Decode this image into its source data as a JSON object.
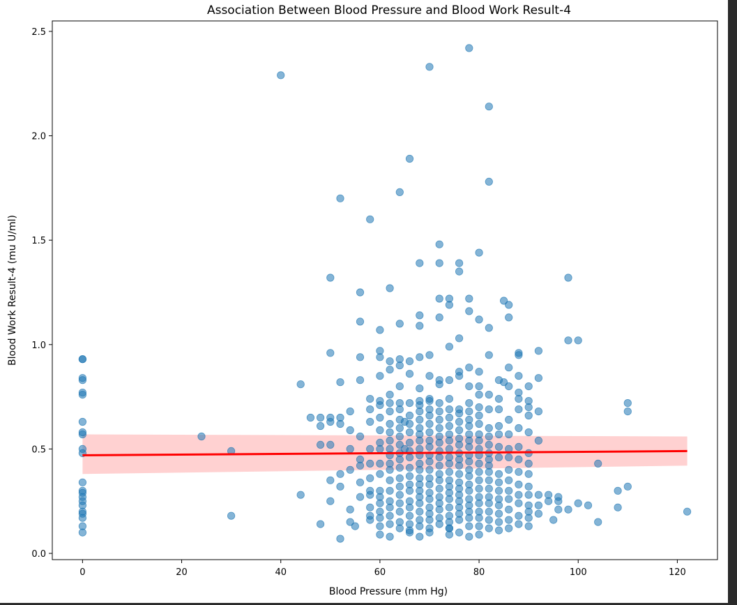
{
  "chart_data": {
    "type": "scatter",
    "title": "Association Between Blood Pressure and Blood Work Result-4",
    "xlabel": "Blood Pressure (mm Hg)",
    "ylabel": "Blood Work Result-4 (mu U/ml)",
    "xlim": [
      -6.1,
      128.1
    ],
    "ylim": [
      -0.03,
      2.55
    ],
    "xticks": [
      0,
      20,
      40,
      60,
      80,
      100,
      120
    ],
    "yticks": [
      0.0,
      0.5,
      1.0,
      1.5,
      2.0,
      2.5
    ],
    "xtick_labels": [
      "0",
      "20",
      "40",
      "60",
      "80",
      "100",
      "120"
    ],
    "ytick_labels": [
      "0.0",
      "0.5",
      "1.0",
      "1.5",
      "2.0",
      "2.5"
    ],
    "grid": false,
    "point_color": "#1f77b4",
    "line_color": "#ff0000",
    "band_color": "#ffb3b3",
    "series": [
      {
        "kind": "points",
        "x": [
          0,
          0,
          0,
          0,
          0,
          0,
          0,
          0,
          0,
          0,
          0,
          0,
          0,
          0,
          0,
          0,
          0,
          0,
          0,
          0,
          0,
          0,
          24,
          30,
          30,
          40,
          44,
          44,
          46,
          48,
          48,
          48,
          48,
          50,
          50,
          50,
          50,
          50,
          50,
          50,
          52,
          52,
          52,
          52,
          52,
          52,
          52,
          54,
          54,
          54,
          54,
          54,
          54,
          55,
          56,
          56,
          56,
          56,
          56,
          56,
          56,
          56,
          56,
          58,
          58,
          58,
          58,
          58,
          58,
          58,
          58,
          58,
          58,
          58,
          58,
          60,
          60,
          60,
          60,
          60,
          60,
          60,
          60,
          60,
          60,
          60,
          60,
          60,
          60,
          60,
          60,
          60,
          60,
          60,
          62,
          62,
          62,
          62,
          62,
          62,
          62,
          62,
          62,
          62,
          62,
          62,
          62,
          62,
          62,
          62,
          62,
          62,
          62,
          62,
          64,
          64,
          64,
          64,
          64,
          64,
          64,
          64,
          64,
          64,
          64,
          64,
          64,
          64,
          64,
          64,
          64,
          64,
          64,
          64,
          64,
          65,
          65,
          66,
          66,
          66,
          66,
          66,
          66,
          66,
          66,
          66,
          66,
          66,
          66,
          66,
          66,
          66,
          66,
          66,
          66,
          66,
          66,
          68,
          68,
          68,
          68,
          68,
          68,
          68,
          68,
          68,
          68,
          68,
          68,
          68,
          68,
          68,
          68,
          68,
          68,
          68,
          68,
          68,
          68,
          68,
          68,
          68,
          70,
          70,
          70,
          70,
          70,
          70,
          70,
          70,
          70,
          70,
          70,
          70,
          70,
          70,
          70,
          70,
          70,
          70,
          70,
          70,
          70,
          70,
          70,
          72,
          72,
          72,
          72,
          72,
          72,
          72,
          72,
          72,
          72,
          72,
          72,
          72,
          72,
          72,
          72,
          72,
          72,
          72,
          72,
          72,
          72,
          72,
          74,
          74,
          74,
          74,
          74,
          74,
          74,
          74,
          74,
          74,
          74,
          74,
          74,
          74,
          74,
          74,
          74,
          74,
          74,
          74,
          74,
          74,
          74,
          74,
          76,
          76,
          76,
          76,
          76,
          76,
          76,
          76,
          76,
          76,
          76,
          76,
          76,
          76,
          76,
          76,
          76,
          76,
          76,
          76,
          76,
          76,
          76,
          78,
          78,
          78,
          78,
          78,
          78,
          78,
          78,
          78,
          78,
          78,
          78,
          78,
          78,
          78,
          78,
          78,
          78,
          78,
          78,
          78,
          78,
          78,
          78,
          80,
          80,
          80,
          80,
          80,
          80,
          80,
          80,
          80,
          80,
          80,
          80,
          80,
          80,
          80,
          80,
          80,
          80,
          80,
          80,
          80,
          80,
          82,
          82,
          82,
          82,
          82,
          82,
          82,
          82,
          82,
          82,
          82,
          82,
          82,
          82,
          82,
          82,
          82,
          82,
          82,
          82,
          84,
          84,
          84,
          84,
          84,
          84,
          84,
          84,
          84,
          84,
          84,
          84,
          84,
          84,
          84,
          85,
          85,
          86,
          86,
          86,
          86,
          86,
          86,
          86,
          86,
          86,
          86,
          86,
          86,
          86,
          86,
          86,
          88,
          88,
          88,
          88,
          88,
          88,
          88,
          88,
          88,
          88,
          88,
          88,
          88,
          88,
          88,
          90,
          90,
          90,
          90,
          90,
          90,
          90,
          90,
          90,
          90,
          90,
          90,
          90,
          90,
          92,
          92,
          92,
          92,
          92,
          92,
          92,
          94,
          94,
          95,
          96,
          96,
          96,
          98,
          98,
          98,
          100,
          100,
          102,
          104,
          104,
          108,
          108,
          110,
          110,
          110,
          122
        ],
        "y": [
          0.1,
          0.13,
          0.17,
          0.19,
          0.2,
          0.23,
          0.25,
          0.27,
          0.29,
          0.3,
          0.34,
          0.48,
          0.5,
          0.57,
          0.58,
          0.63,
          0.76,
          0.77,
          0.83,
          0.84,
          0.93,
          0.93,
          0.56,
          0.18,
          0.49,
          2.29,
          0.81,
          0.28,
          0.65,
          0.14,
          0.52,
          0.61,
          0.65,
          0.25,
          0.35,
          0.52,
          0.63,
          0.65,
          0.96,
          1.32,
          0.07,
          0.32,
          0.38,
          0.62,
          0.65,
          0.82,
          1.7,
          0.15,
          0.21,
          0.4,
          0.5,
          0.59,
          0.68,
          0.13,
          0.27,
          0.34,
          0.42,
          0.45,
          0.56,
          0.83,
          0.94,
          1.11,
          1.25,
          0.16,
          0.18,
          0.22,
          0.28,
          0.3,
          0.36,
          0.43,
          0.5,
          0.63,
          0.69,
          0.74,
          1.6,
          0.09,
          0.13,
          0.17,
          0.2,
          0.24,
          0.27,
          0.3,
          0.38,
          0.43,
          0.5,
          0.53,
          0.59,
          0.65,
          0.71,
          0.73,
          0.85,
          0.94,
          0.97,
          1.07,
          0.08,
          0.14,
          0.18,
          0.22,
          0.25,
          0.3,
          0.35,
          0.4,
          0.43,
          0.47,
          0.5,
          0.54,
          0.58,
          0.62,
          0.68,
          0.72,
          0.76,
          0.88,
          0.92,
          1.27,
          0.12,
          0.15,
          0.2,
          0.24,
          0.28,
          0.32,
          0.36,
          0.41,
          0.45,
          0.48,
          0.52,
          0.56,
          0.6,
          0.64,
          0.69,
          0.72,
          0.8,
          0.9,
          0.93,
          1.1,
          1.73,
          0.63,
          0.5,
          0.1,
          0.14,
          0.18,
          0.22,
          0.25,
          0.3,
          0.33,
          0.37,
          0.41,
          0.46,
          0.49,
          0.53,
          0.58,
          0.62,
          0.66,
          0.72,
          0.86,
          0.92,
          1.89,
          0.11,
          0.13,
          0.16,
          0.2,
          0.24,
          0.27,
          0.3,
          0.33,
          0.36,
          0.4,
          0.43,
          0.47,
          0.5,
          0.54,
          0.57,
          0.6,
          0.64,
          0.68,
          0.71,
          0.73,
          0.79,
          0.94,
          1.09,
          1.14,
          1.39,
          0.08,
          0.12,
          0.16,
          0.19,
          0.22,
          0.26,
          0.29,
          0.33,
          0.36,
          0.4,
          0.44,
          0.47,
          0.51,
          0.54,
          0.58,
          0.62,
          0.66,
          0.69,
          0.73,
          0.74,
          0.85,
          0.95,
          2.33,
          0.1,
          0.14,
          0.17,
          0.21,
          0.24,
          0.27,
          0.31,
          0.35,
          0.38,
          0.42,
          0.46,
          0.49,
          0.53,
          0.56,
          0.6,
          0.64,
          0.68,
          0.72,
          0.81,
          0.83,
          1.13,
          1.22,
          1.39,
          1.48,
          0.09,
          0.12,
          0.15,
          0.18,
          0.22,
          0.26,
          0.29,
          0.32,
          0.35,
          0.39,
          0.43,
          0.46,
          0.5,
          0.54,
          0.57,
          0.61,
          0.65,
          0.69,
          0.74,
          0.83,
          0.99,
          1.19,
          1.22,
          0.12,
          0.16,
          0.19,
          0.22,
          0.25,
          0.28,
          0.31,
          0.34,
          0.38,
          0.42,
          0.45,
          0.48,
          0.52,
          0.55,
          0.59,
          0.63,
          0.67,
          0.69,
          0.85,
          0.87,
          1.03,
          1.35,
          1.39,
          0.1,
          0.13,
          0.17,
          0.2,
          0.23,
          0.26,
          0.3,
          0.33,
          0.37,
          0.4,
          0.44,
          0.47,
          0.51,
          0.54,
          0.57,
          0.61,
          0.64,
          0.68,
          0.72,
          0.8,
          0.89,
          1.16,
          1.22,
          2.42,
          0.08,
          0.09,
          0.13,
          0.17,
          0.2,
          0.24,
          0.27,
          0.31,
          0.35,
          0.39,
          0.43,
          0.47,
          0.5,
          0.54,
          0.57,
          0.62,
          0.66,
          0.7,
          0.76,
          0.8,
          0.87,
          1.12,
          1.44,
          0.12,
          0.16,
          0.2,
          0.24,
          0.27,
          0.31,
          0.35,
          0.39,
          0.42,
          0.45,
          0.48,
          0.52,
          0.56,
          0.6,
          0.69,
          0.76,
          0.95,
          1.08,
          1.78,
          2.14,
          0.11,
          0.15,
          0.19,
          0.23,
          0.26,
          0.3,
          0.34,
          0.38,
          0.46,
          0.51,
          0.57,
          0.61,
          0.69,
          0.74,
          0.83,
          0.82,
          1.21,
          0.12,
          0.16,
          0.21,
          0.26,
          0.3,
          0.35,
          0.4,
          0.46,
          0.5,
          0.57,
          0.64,
          0.8,
          0.89,
          1.13,
          1.19,
          0.14,
          0.18,
          0.24,
          0.28,
          0.33,
          0.39,
          0.45,
          0.51,
          0.6,
          0.69,
          0.74,
          0.77,
          0.85,
          0.96,
          0.95,
          0.13,
          0.17,
          0.2,
          0.23,
          0.28,
          0.32,
          0.38,
          0.43,
          0.48,
          0.58,
          0.66,
          0.7,
          0.73,
          0.8,
          0.19,
          0.23,
          0.28,
          0.54,
          0.68,
          0.84,
          0.97,
          0.25,
          0.28,
          0.16,
          0.21,
          0.25,
          0.27,
          0.21,
          1.02,
          1.32,
          0.24,
          1.02,
          0.23,
          0.15,
          0.43,
          0.22,
          0.3,
          0.32,
          0.68,
          0.72,
          0.2
        ]
      },
      {
        "kind": "regression",
        "x": [
          0,
          122
        ],
        "y": [
          0.47,
          0.49
        ],
        "ci_lower": [
          0.38,
          0.42
        ],
        "ci_upper": [
          0.57,
          0.56
        ]
      }
    ]
  }
}
